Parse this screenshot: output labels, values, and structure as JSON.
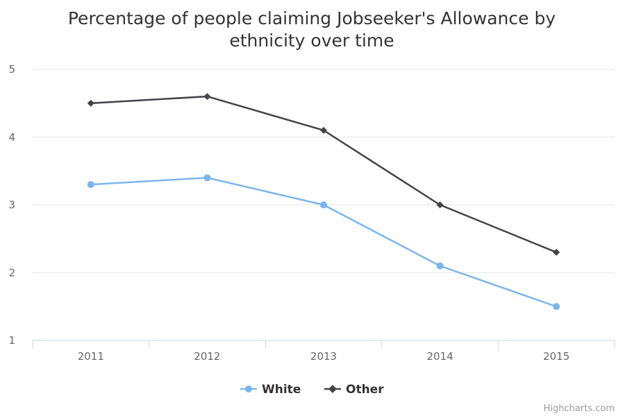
{
  "chart_data": {
    "type": "line",
    "title_lines": [
      "Percentage of people claiming Jobseeker's Allowance by",
      "ethnicity over time"
    ],
    "xlabel": "",
    "ylabel": "",
    "x": [
      "2011",
      "2012",
      "2013",
      "2014",
      "2015"
    ],
    "ylim": [
      1,
      5
    ],
    "yticks": [
      1,
      2,
      3,
      4,
      5
    ],
    "grid": true,
    "legend_position": "bottom-center",
    "series": [
      {
        "name": "White",
        "color": "#7cb5ec",
        "marker": "circle",
        "values": [
          3.3,
          3.4,
          3.0,
          2.1,
          1.5
        ]
      },
      {
        "name": "Other",
        "color": "#434348",
        "marker": "diamond",
        "values": [
          4.5,
          4.6,
          4.1,
          3.0,
          2.3
        ]
      }
    ]
  },
  "credits": "Highcharts.com"
}
